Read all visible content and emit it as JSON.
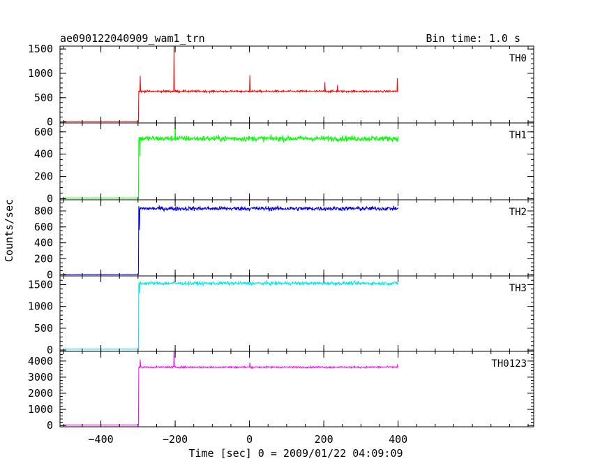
{
  "chart_data": {
    "type": "line",
    "title": "ae090122040909_wam1_trn",
    "subtitle": "Bin time: 1.0 s",
    "xlabel": "Time [sec] 0 = 2009/01/22 04:09:09",
    "ylabel": "Counts/sec",
    "xlim": [
      -510,
      765
    ],
    "xticks": [
      -400,
      -200,
      0,
      200,
      400
    ],
    "xtick_labels": [
      "−400",
      "−200",
      "0",
      "200",
      "400"
    ],
    "grid": false,
    "panels": [
      {
        "name": "TH0",
        "color": "#ff0000",
        "ylim": [
          -20,
          1560
        ],
        "yticks": [
          0,
          500,
          1000,
          1500
        ],
        "ytick_labels": [
          "0",
          "500",
          "1000",
          "1500"
        ],
        "pre_level": 10,
        "post_level": 630,
        "noise": 45,
        "onset": -298,
        "end": 400,
        "start": -500,
        "spikes": [
          [
            -294,
            950
          ],
          [
            -203,
            1560
          ],
          [
            1,
            960
          ],
          [
            203,
            820
          ],
          [
            237,
            760
          ],
          [
            398,
            900
          ]
        ]
      },
      {
        "name": "TH1",
        "color": "#00ff00",
        "ylim": [
          -10,
          680
        ],
        "yticks": [
          0,
          200,
          400,
          600
        ],
        "ytick_labels": [
          "0",
          "200",
          "400",
          "600"
        ],
        "pre_level": 5,
        "post_level": 540,
        "noise": 55,
        "onset": -298,
        "end": 400,
        "start": -500,
        "spikes": [
          [
            -295,
            380
          ],
          [
            -200,
            680
          ]
        ]
      },
      {
        "name": "TH2",
        "color": "#0000e0",
        "ylim": [
          -15,
          940
        ],
        "yticks": [
          0,
          200,
          400,
          600,
          800
        ],
        "ytick_labels": [
          "0",
          "200",
          "400",
          "600",
          "800"
        ],
        "pre_level": 5,
        "post_level": 830,
        "noise": 60,
        "onset": -298,
        "end": 400,
        "start": -500,
        "spikes": [
          [
            -296,
            560
          ]
        ]
      },
      {
        "name": "TH3",
        "color": "#00e8e8",
        "ylim": [
          -30,
          1700
        ],
        "yticks": [
          0,
          500,
          1000,
          1500
        ],
        "ytick_labels": [
          "0",
          "500",
          "1000",
          "1500"
        ],
        "pre_level": 20,
        "post_level": 1530,
        "noise": 90,
        "onset": -298,
        "end": 400,
        "start": -500,
        "spikes": [
          [
            -296,
            1300
          ]
        ]
      },
      {
        "name": "TH0123",
        "color": "#ff00ff",
        "ylim": [
          -80,
          4600
        ],
        "yticks": [
          0,
          1000,
          2000,
          3000,
          4000
        ],
        "ytick_labels": [
          "0",
          "1000",
          "2000",
          "3000",
          "4000"
        ],
        "pre_level": 40,
        "post_level": 3620,
        "noise": 110,
        "onset": -298,
        "end": 400,
        "start": -500,
        "spikes": [
          [
            -294,
            4100
          ],
          [
            -203,
            4600
          ],
          [
            1,
            3900
          ],
          [
            398,
            3800
          ]
        ]
      }
    ]
  }
}
